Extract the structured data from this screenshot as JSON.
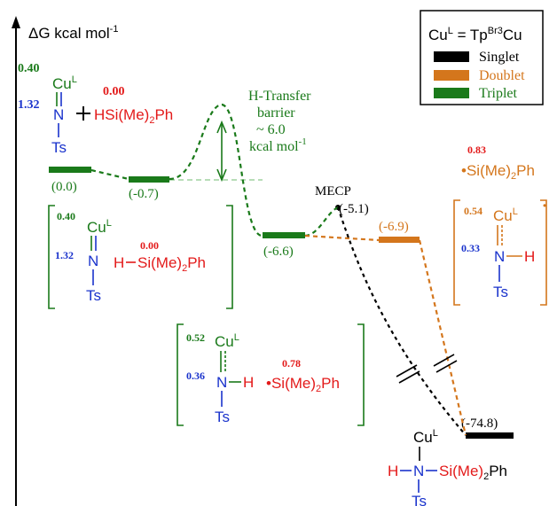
{
  "colors": {
    "triplet": "#1a7a1a",
    "doublet": "#d4761c",
    "singlet": "#000000",
    "nitrogen": "#1a33cc",
    "red": "#e31a1a",
    "spin_blue": "#1a33cc",
    "spin_green": "#1a7a1a"
  },
  "axis": {
    "label_pre": "ΔG kcal mol",
    "label_sup": "-1"
  },
  "legend": {
    "title_pre": "Cu",
    "title_sup1": "L",
    "title_mid": " = Tp",
    "title_sup2": "Br3",
    "title_post": "Cu",
    "items": [
      {
        "label": "Singlet",
        "color": "#000000"
      },
      {
        "label": "Doublet",
        "color": "#d4761c"
      },
      {
        "label": "Triplet",
        "color": "#1a7a1a"
      }
    ]
  },
  "levels": {
    "reactant": "(0.0)",
    "complex": "(-0.7)",
    "intermediate": "(-6.6)",
    "mecp": "(-5.1)",
    "doublet": "(-6.9)",
    "product": "(-74.8)"
  },
  "labels": {
    "mecp": "MECP",
    "barrier_l1": "H-Transfer",
    "barrier_l2": "barrier",
    "barrier_l3": "~ 6.0",
    "barrier_l4_pre": "kcal mol",
    "barrier_l4_sup": "-1"
  },
  "structures": {
    "reactant": {
      "spin_cu": "0.40",
      "spin_n": "1.32",
      "spin_h": "0.00",
      "cu": "Cu",
      "cu_sup": "L",
      "n": "N",
      "ts": "Ts",
      "hsi_h": "H",
      "hsi_si": "Si(Me)",
      "hsi_sub": "2",
      "hsi_ph": "Ph"
    },
    "complex": {
      "spin_cu": "0.40",
      "spin_n": "1.32",
      "spin_h": "0.00",
      "cu": "Cu",
      "cu_sup": "L",
      "n": "N",
      "ts": "Ts",
      "h": "H",
      "si": "Si(Me)",
      "sub": "2",
      "ph": "Ph"
    },
    "intermediate": {
      "spin_cu": "0.52",
      "spin_n": "0.36",
      "spin_si": "0.78",
      "cu": "Cu",
      "cu_sup": "L",
      "n": "N",
      "h": "H",
      "ts": "Ts",
      "dot": "•",
      "si": "Si(Me)",
      "sub": "2",
      "ph": "Ph"
    },
    "doublet_radical": {
      "spin_si": "0.83",
      "dot": "•",
      "si": "Si(Me)",
      "sub": "2",
      "ph": "Ph"
    },
    "doublet_complex": {
      "spin_cu": "0.54",
      "spin_n": "0.33",
      "cu": "Cu",
      "cu_sup": "L",
      "n": "N",
      "h": "H",
      "ts": "Ts",
      "dot": "•"
    },
    "product": {
      "cu": "Cu",
      "cu_sup": "L",
      "h": "H",
      "n": "N",
      "si": "Si(Me)",
      "sub": "2",
      "ph": "Ph",
      "ts": "Ts"
    }
  }
}
